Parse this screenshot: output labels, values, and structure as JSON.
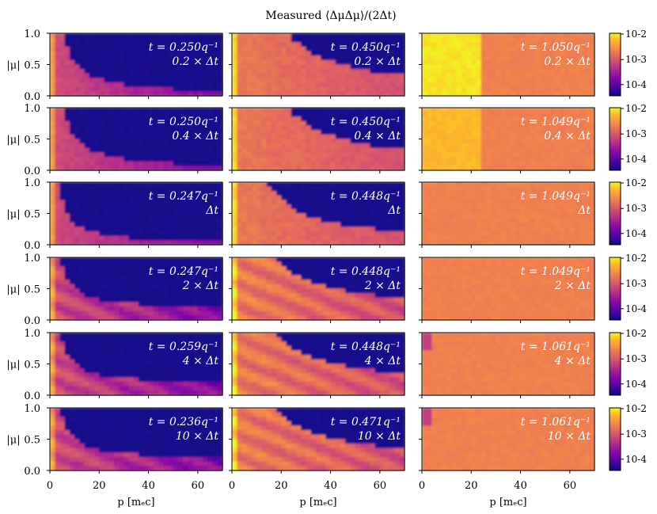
{
  "chart_data": {
    "type": "heatmap",
    "title": "Measured ⟨ΔμΔμ⟩/(2Δt)",
    "xlabel": "p [mₑc]",
    "ylabel": "|μ|",
    "xlim": [
      0,
      70
    ],
    "ylim": [
      0,
      1
    ],
    "x_ticks": [
      "0",
      "20",
      "40",
      "60"
    ],
    "y_ticks": [
      "0.0",
      "0.5",
      "1.0"
    ],
    "colorbar": {
      "scale": "log",
      "colormap": "plasma",
      "ticks": [
        "10-2",
        "10-3",
        "10-4"
      ]
    },
    "rows": [
      {
        "dt_label": "0.2 × Δt",
        "times": [
          "t = 0.250q⁻¹",
          "t = 0.450q⁻¹",
          "t = 1.050q⁻¹"
        ]
      },
      {
        "dt_label": "0.4 × Δt",
        "times": [
          "t = 0.250q⁻¹",
          "t = 0.450q⁻¹",
          "t = 1.049q⁻¹"
        ]
      },
      {
        "dt_label": "Δt",
        "times": [
          "t = 0.247q⁻¹",
          "t = 0.448q⁻¹",
          "t = 1.049q⁻¹"
        ]
      },
      {
        "dt_label": "2 × Δt",
        "times": [
          "t = 0.247q⁻¹",
          "t = 0.448q⁻¹",
          "t = 1.049q⁻¹"
        ]
      },
      {
        "dt_label": "4 × Δt",
        "times": [
          "t = 0.259q⁻¹",
          "t = 0.448q⁻¹",
          "t = 1.061q⁻¹"
        ]
      },
      {
        "dt_label": "10 × Δt",
        "times": [
          "t = 0.236q⁻¹",
          "t = 0.471q⁻¹",
          "t = 1.061q⁻¹"
        ]
      }
    ]
  }
}
